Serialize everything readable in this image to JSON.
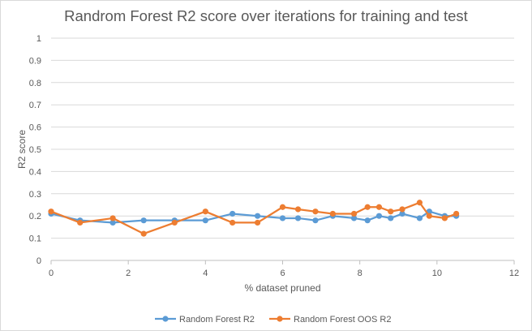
{
  "chart_data": {
    "type": "line",
    "title": "Randrom Forest R2 score over iterations for training and test",
    "xlabel": "% dataset pruned",
    "ylabel": "R2 score",
    "xlim": [
      0,
      12
    ],
    "ylim": [
      0,
      1
    ],
    "xticks": [
      0,
      2,
      4,
      6,
      8,
      10,
      12
    ],
    "yticks": [
      "0",
      "0.1",
      "0.2",
      "0.3",
      "0.4",
      "0.5",
      "0.6",
      "0.7",
      "0.8",
      "0.9",
      "1"
    ],
    "grid": "horizontal",
    "legend_position": "bottom",
    "series": [
      {
        "name": "Random Forest R2",
        "color": "#5b9bd5",
        "points": [
          [
            0,
            0.21
          ],
          [
            0.75,
            0.18
          ],
          [
            1.6,
            0.17
          ],
          [
            2.4,
            0.18
          ],
          [
            3.2,
            0.18
          ],
          [
            4.0,
            0.18
          ],
          [
            4.7,
            0.21
          ],
          [
            5.35,
            0.2
          ],
          [
            6.0,
            0.19
          ],
          [
            6.4,
            0.19
          ],
          [
            6.85,
            0.18
          ],
          [
            7.3,
            0.2
          ],
          [
            7.85,
            0.19
          ],
          [
            8.2,
            0.18
          ],
          [
            8.5,
            0.2
          ],
          [
            8.8,
            0.19
          ],
          [
            9.1,
            0.21
          ],
          [
            9.55,
            0.19
          ],
          [
            9.8,
            0.22
          ],
          [
            10.2,
            0.2
          ],
          [
            10.5,
            0.2
          ]
        ]
      },
      {
        "name": "Random Forest OOS R2",
        "color": "#ed7d31",
        "points": [
          [
            0,
            0.22
          ],
          [
            0.75,
            0.17
          ],
          [
            1.6,
            0.19
          ],
          [
            2.4,
            0.12
          ],
          [
            3.2,
            0.17
          ],
          [
            4.0,
            0.22
          ],
          [
            4.7,
            0.17
          ],
          [
            5.35,
            0.17
          ],
          [
            6.0,
            0.24
          ],
          [
            6.4,
            0.23
          ],
          [
            6.85,
            0.22
          ],
          [
            7.3,
            0.21
          ],
          [
            7.85,
            0.21
          ],
          [
            8.2,
            0.24
          ],
          [
            8.5,
            0.24
          ],
          [
            8.8,
            0.22
          ],
          [
            9.1,
            0.23
          ],
          [
            9.55,
            0.26
          ],
          [
            9.8,
            0.2
          ],
          [
            10.2,
            0.19
          ],
          [
            10.5,
            0.21
          ]
        ]
      }
    ]
  }
}
